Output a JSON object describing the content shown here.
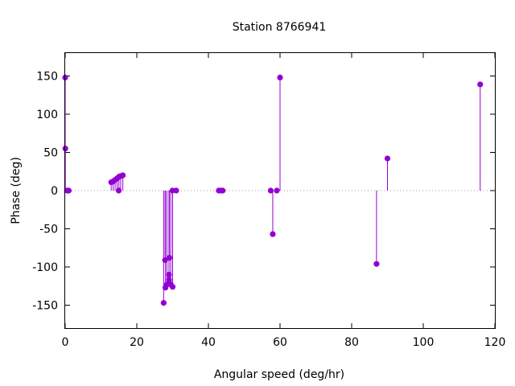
{
  "chart_data": {
    "type": "scatter",
    "style": "impulses with points",
    "title": "Station 8766941",
    "xlabel": "Angular speed (deg/hr)",
    "ylabel": "Phase (deg)",
    "xlim": [
      0,
      120
    ],
    "ylim": [
      -180,
      180
    ],
    "xticks": [
      0,
      20,
      40,
      60,
      80,
      100,
      120
    ],
    "yticks": [
      -150,
      -100,
      -50,
      0,
      50,
      100,
      150
    ],
    "zero_line": "dotted",
    "color": "#9400d3",
    "points": [
      {
        "x": 0.0,
        "y": 148
      },
      {
        "x": 0.04,
        "y": 55
      },
      {
        "x": 0.5,
        "y": 0
      },
      {
        "x": 0.8,
        "y": 0
      },
      {
        "x": 1.0,
        "y": 0
      },
      {
        "x": 12.85,
        "y": 11
      },
      {
        "x": 13.4,
        "y": 12
      },
      {
        "x": 13.95,
        "y": 14
      },
      {
        "x": 14.5,
        "y": 16
      },
      {
        "x": 14.96,
        "y": 0
      },
      {
        "x": 15.0,
        "y": 18
      },
      {
        "x": 15.5,
        "y": 19
      },
      {
        "x": 16.1,
        "y": 20
      },
      {
        "x": 27.5,
        "y": -147
      },
      {
        "x": 27.9,
        "y": -91
      },
      {
        "x": 28.0,
        "y": -127
      },
      {
        "x": 28.4,
        "y": -123
      },
      {
        "x": 28.98,
        "y": -110
      },
      {
        "x": 29.0,
        "y": -117
      },
      {
        "x": 29.1,
        "y": -88
      },
      {
        "x": 29.5,
        "y": -123
      },
      {
        "x": 29.95,
        "y": 0
      },
      {
        "x": 30.0,
        "y": -126
      },
      {
        "x": 31.0,
        "y": 0
      },
      {
        "x": 42.9,
        "y": 0
      },
      {
        "x": 43.5,
        "y": 0
      },
      {
        "x": 44.0,
        "y": 0
      },
      {
        "x": 57.4,
        "y": 0
      },
      {
        "x": 57.97,
        "y": -57
      },
      {
        "x": 59.1,
        "y": 0
      },
      {
        "x": 60.0,
        "y": 148
      },
      {
        "x": 86.95,
        "y": -96
      },
      {
        "x": 90.0,
        "y": 42
      },
      {
        "x": 115.9,
        "y": 139
      }
    ]
  }
}
